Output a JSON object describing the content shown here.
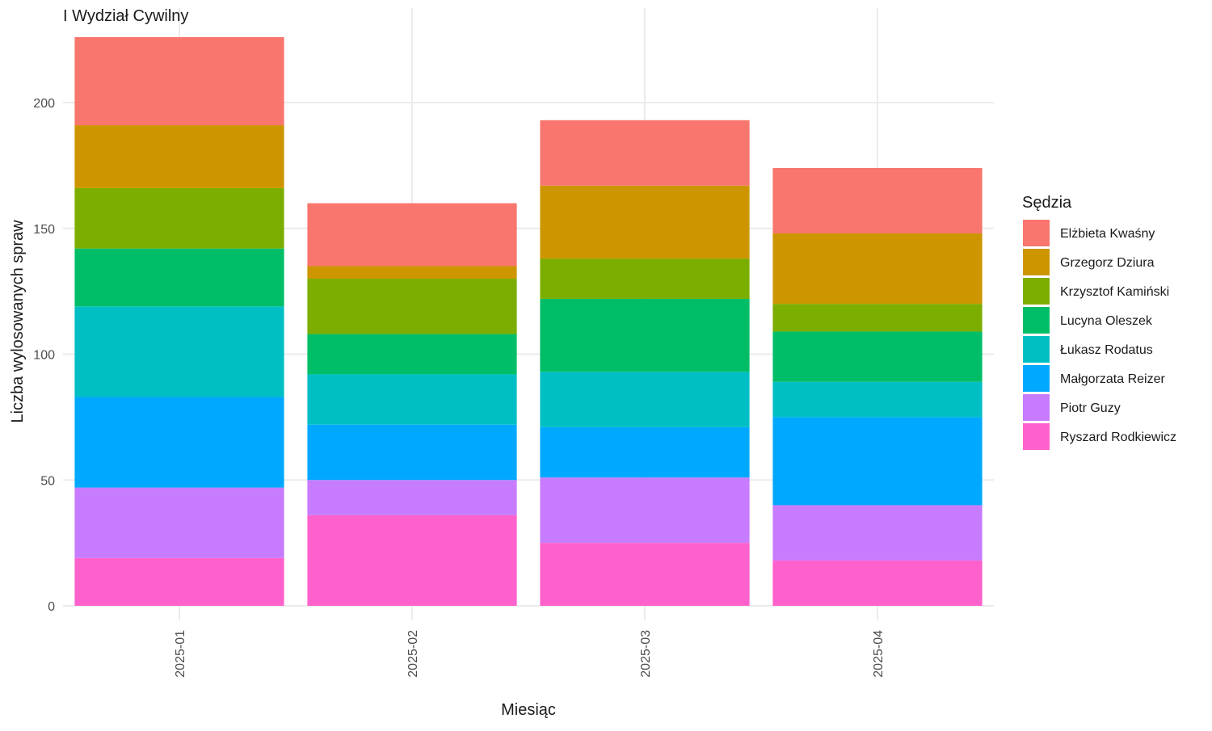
{
  "chart_data": {
    "type": "bar",
    "stacked": true,
    "title": "I Wydział Cywilny",
    "xlabel": "Miesiąc",
    "ylabel": "Liczba wylosowanych spraw",
    "ylim": [
      0,
      237
    ],
    "yticks": [
      0,
      50,
      100,
      150,
      200
    ],
    "grid": true,
    "legend_title": "Sędzia",
    "legend_position": "right",
    "categories": [
      "2025-01",
      "2025-02",
      "2025-03",
      "2025-04"
    ],
    "series": [
      {
        "name": "Ryszard Rodkiewicz",
        "color": "#FF61CC",
        "values": [
          19,
          36,
          25,
          18
        ]
      },
      {
        "name": "Piotr Guzy",
        "color": "#C77CFF",
        "values": [
          28,
          14,
          26,
          22
        ]
      },
      {
        "name": "Małgorzata Reizer",
        "color": "#00A9FF",
        "values": [
          36,
          22,
          20,
          35
        ]
      },
      {
        "name": "Łukasz Rodatus",
        "color": "#00BFC4",
        "values": [
          36,
          20,
          22,
          14
        ]
      },
      {
        "name": "Lucyna Oleszek",
        "color": "#00BE67",
        "values": [
          23,
          16,
          29,
          20
        ]
      },
      {
        "name": "Krzysztof Kamiński",
        "color": "#7CAE00",
        "values": [
          24,
          22,
          16,
          11
        ]
      },
      {
        "name": "Grzegorz Dziura",
        "color": "#CD9600",
        "values": [
          25,
          5,
          29,
          28
        ]
      },
      {
        "name": "Elżbieta Kwaśny",
        "color": "#F8766D",
        "values": [
          35,
          25,
          26,
          26
        ]
      }
    ],
    "legend_order": [
      "Elżbieta Kwaśny",
      "Grzegorz Dziura",
      "Krzysztof Kamiński",
      "Lucyna Oleszek",
      "Łukasz Rodatus",
      "Małgorzata Reizer",
      "Piotr Guzy",
      "Ryszard Rodkiewicz"
    ]
  }
}
